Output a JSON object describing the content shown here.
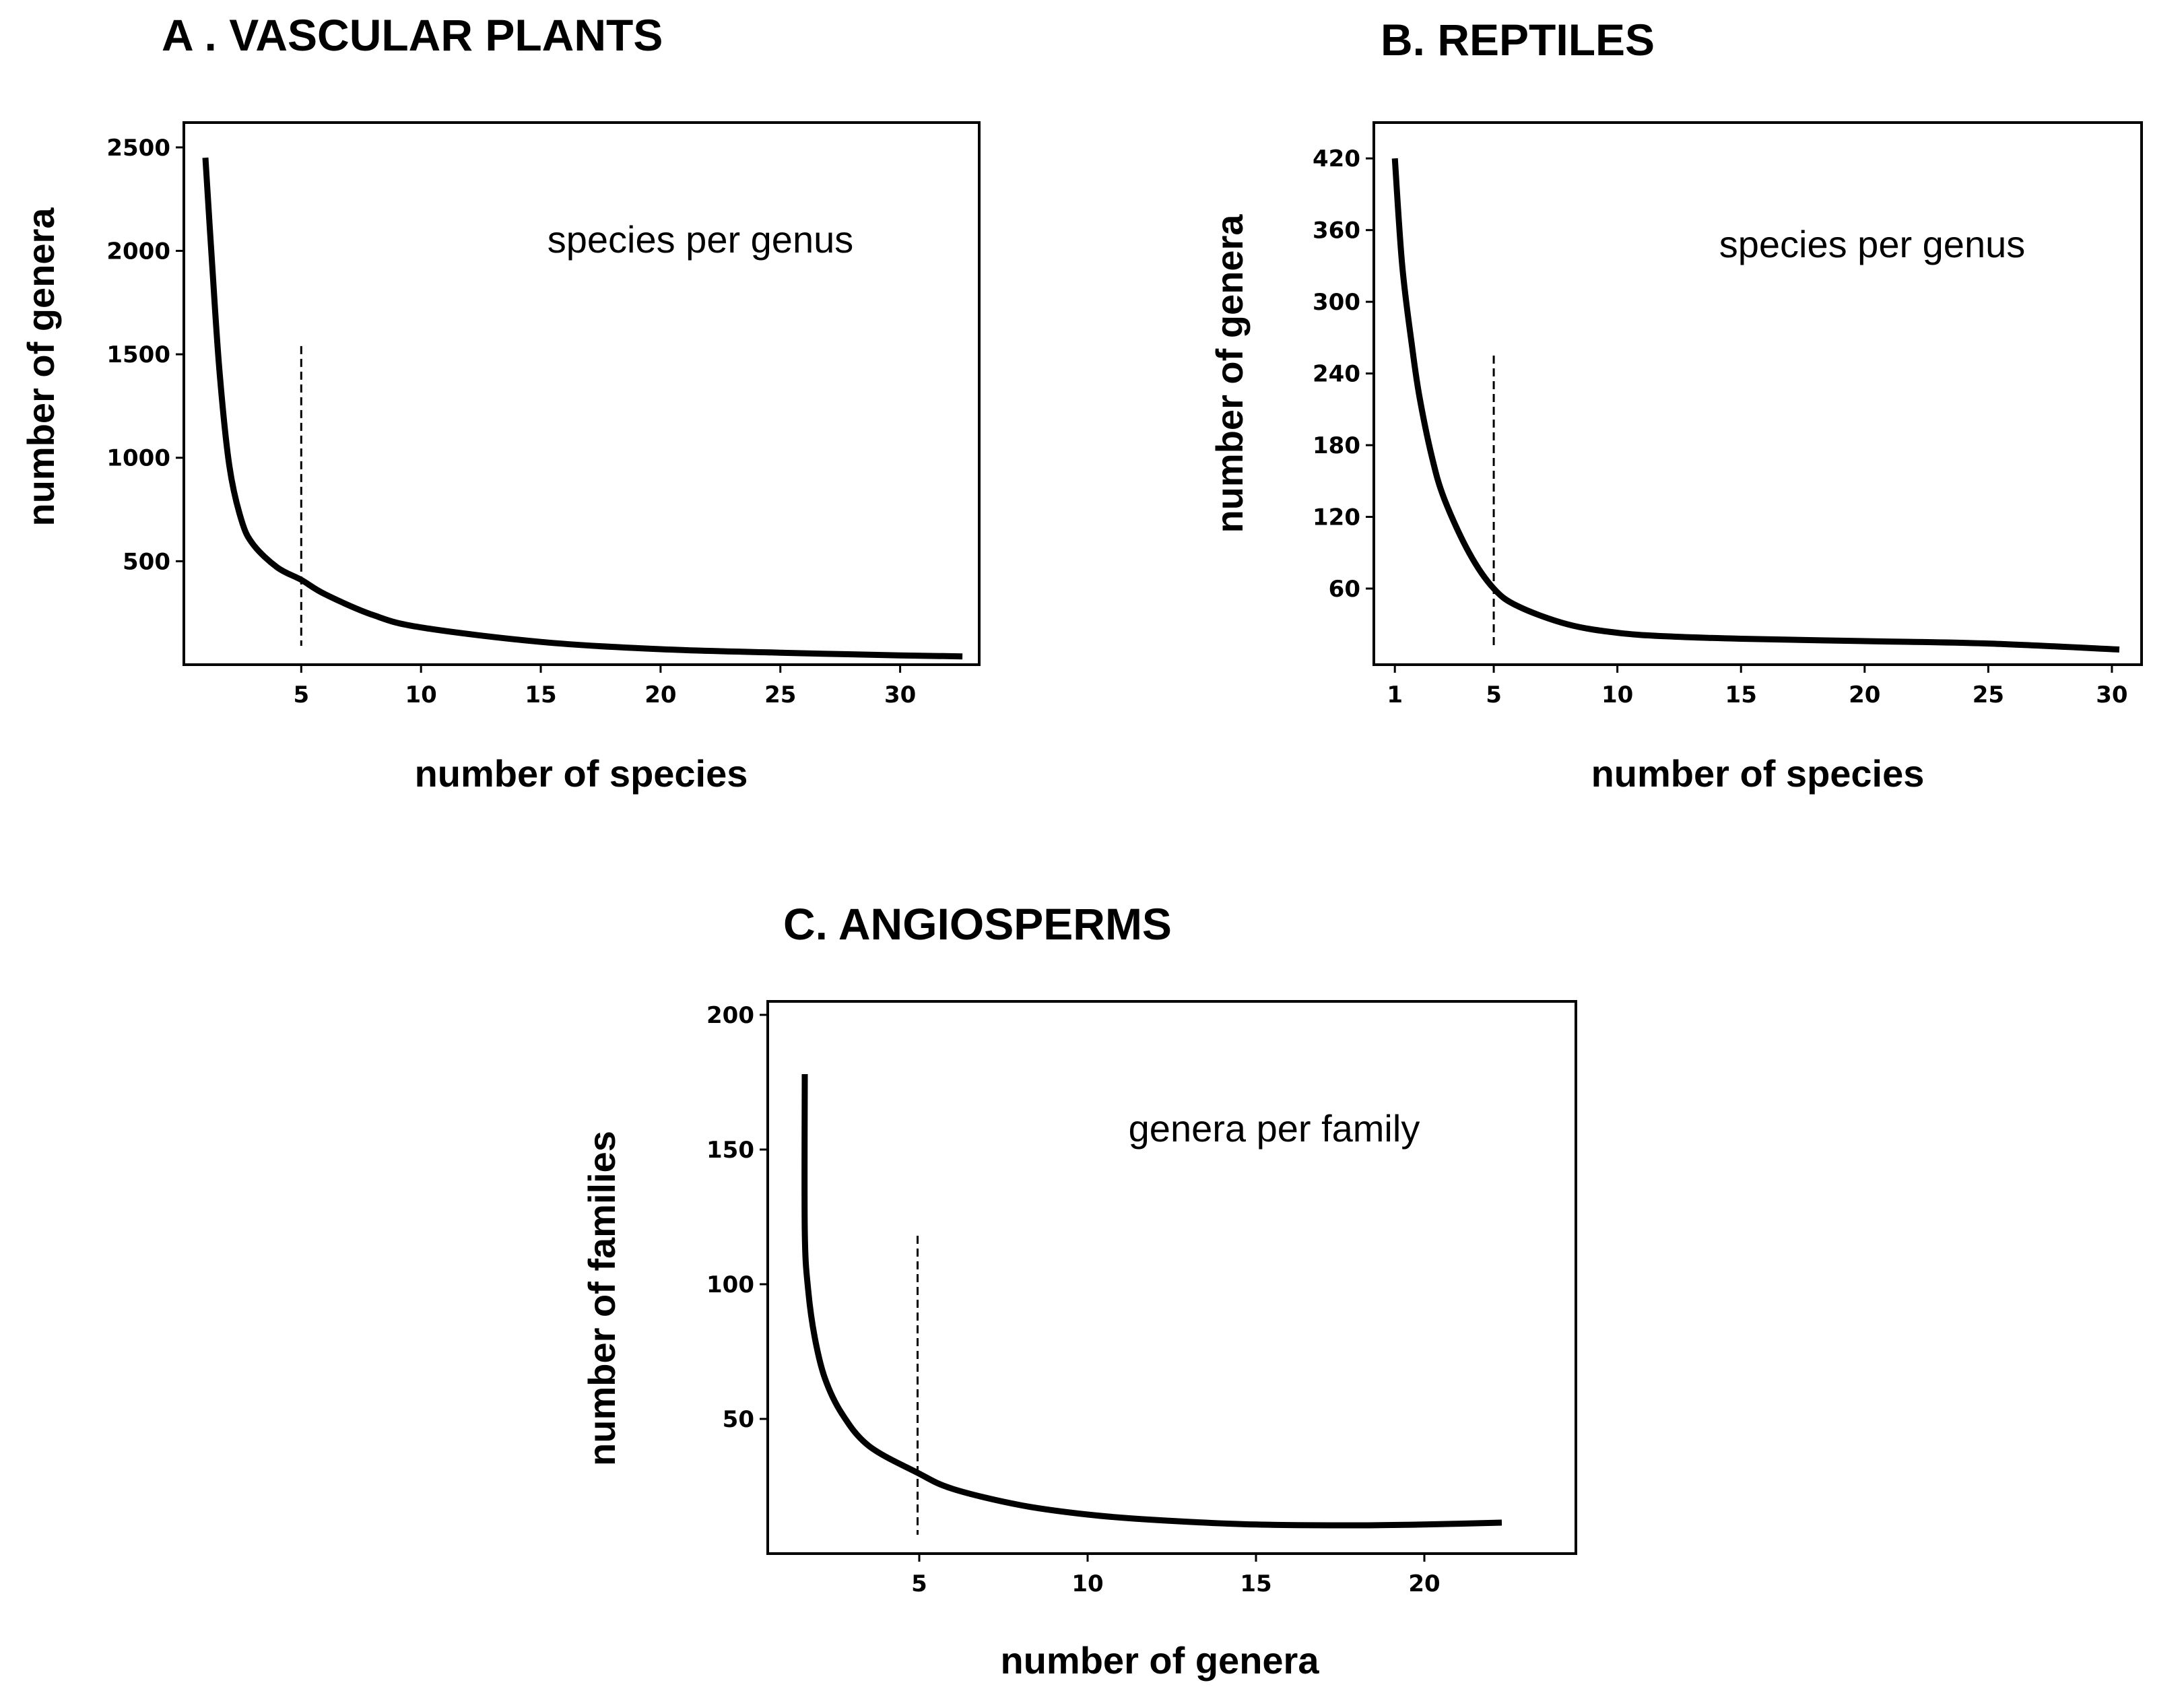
{
  "chart_data": [
    {
      "type": "line",
      "title": "A . VASCULAR PLANTS",
      "xlabel": "number of species",
      "ylabel": "number of genera",
      "annotation": "species per genus",
      "xlim": [
        0.1,
        33.3
      ],
      "ylim": [
        0,
        2620
      ],
      "xticks": [
        5,
        10,
        15,
        20,
        25,
        30
      ],
      "yticks": [
        500,
        1000,
        1500,
        2000,
        2500
      ],
      "reference_line": {
        "x": 5,
        "y_top": 1540
      },
      "series": [
        {
          "name": "species per genus",
          "x": [
            1,
            1.3,
            1.6,
            2,
            2.5,
            3,
            4,
            5,
            6,
            8,
            10,
            15,
            20,
            25,
            30,
            32.6
          ],
          "y": [
            2450,
            1900,
            1400,
            960,
            700,
            580,
            470,
            410,
            340,
            240,
            180,
            110,
            75,
            58,
            45,
            40
          ]
        }
      ]
    },
    {
      "type": "line",
      "title": "B. REPTILES",
      "xlabel": "number of species",
      "ylabel": "number of genera",
      "annotation": "species per genus",
      "xlim": [
        0.15,
        31.2
      ],
      "ylim": [
        -3.7,
        450
      ],
      "xticks": [
        1,
        5,
        10,
        15,
        20,
        25,
        30
      ],
      "yticks": [
        60,
        120,
        180,
        240,
        300,
        360,
        420
      ],
      "reference_line": {
        "x": 5,
        "y_top": 255
      },
      "series": [
        {
          "name": "species per genus",
          "x": [
            1,
            1.3,
            1.7,
            2,
            2.5,
            3,
            4,
            5,
            6,
            8,
            10,
            12,
            15,
            20,
            25,
            30.3
          ],
          "y": [
            420,
            330,
            262,
            220,
            170,
            135,
            90,
            60,
            45,
            30,
            23,
            20,
            18,
            16,
            14,
            9
          ]
        }
      ]
    },
    {
      "type": "line",
      "title": "C. ANGIOSPERMS",
      "xlabel": "number of genera",
      "ylabel": "number of families",
      "annotation": "genera per family",
      "xlim": [
        0.5,
        24.5
      ],
      "ylim": [
        0,
        205
      ],
      "xticks": [
        5,
        10,
        15,
        20
      ],
      "yticks": [
        50,
        100,
        150,
        200
      ],
      "reference_line": {
        "x": 4.95,
        "y_top": 118
      },
      "series": [
        {
          "name": "genera per family",
          "x": [
            1.6,
            1.6,
            1.7,
            1.9,
            2.2,
            2.7,
            3.5,
            4.95,
            6,
            8,
            10,
            12,
            15,
            18,
            20,
            22.3
          ],
          "y": [
            178,
            120,
            98,
            80,
            65,
            52,
            40,
            30,
            24,
            18,
            14.5,
            12.5,
            10.8,
            10.5,
            10.8,
            11.5
          ]
        }
      ]
    }
  ]
}
